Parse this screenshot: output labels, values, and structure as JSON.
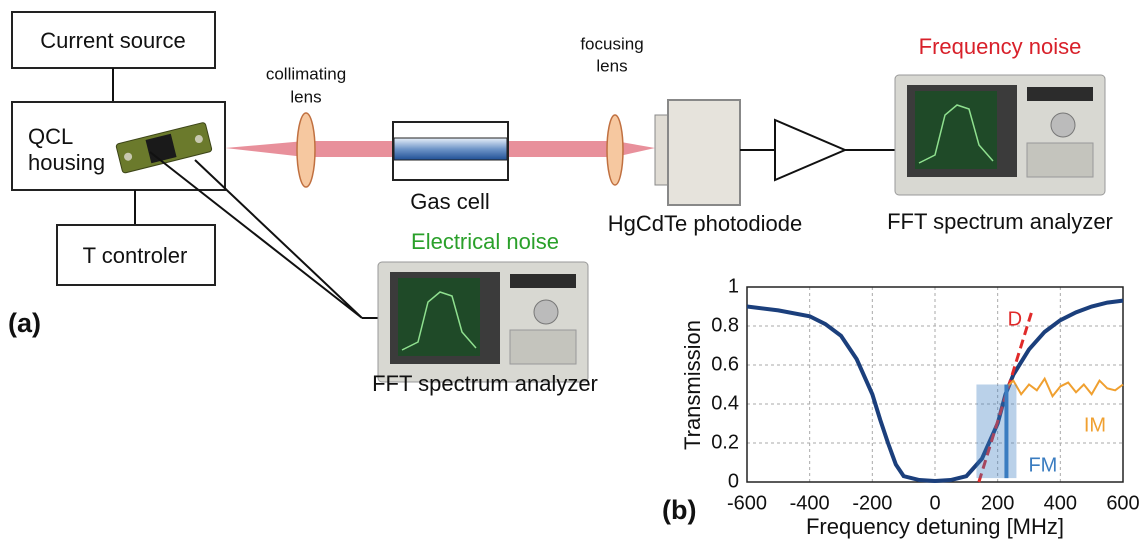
{
  "diagram": {
    "current_source": "Current source",
    "qcl_housing": [
      "QCL",
      "housing"
    ],
    "t_controller": "T controler",
    "collimating_lens": [
      "collimating",
      "lens"
    ],
    "gas_cell": "Gas cell",
    "focusing_lens": [
      "focusing",
      "lens"
    ],
    "photodiode": "HgCdTe photodiode",
    "frequency_noise": "Frequency noise",
    "analyzer_top": "FFT spectrum analyzer",
    "electrical_noise": "Electrical noise",
    "analyzer_bottom": "FFT spectrum analyzer",
    "panel_a": "(a)",
    "panel_b": "(b)"
  },
  "chart_data": {
    "type": "line",
    "xlabel": "Frequency detuning [MHz]",
    "ylabel": "Transmission",
    "xlim": [
      -600,
      600
    ],
    "xticks": [
      -600,
      -400,
      -200,
      0,
      200,
      400,
      600
    ],
    "ylim": [
      0,
      1
    ],
    "yticks": [
      0,
      0.2,
      0.4,
      0.6,
      0.8,
      1
    ],
    "grid": true,
    "series": [
      {
        "color": "#1b3f7c",
        "x": [
          -600,
          -500,
          -400,
          -350,
          -300,
          -250,
          -200,
          -175,
          -150,
          -125,
          -100,
          -50,
          0,
          50,
          100,
          150,
          200,
          225,
          250,
          300,
          350,
          400,
          450,
          500,
          550,
          600
        ],
        "values": [
          0.9,
          0.88,
          0.85,
          0.81,
          0.75,
          0.63,
          0.45,
          0.32,
          0.2,
          0.09,
          0.03,
          0.01,
          0.005,
          0.01,
          0.03,
          0.12,
          0.3,
          0.45,
          0.55,
          0.68,
          0.77,
          0.83,
          0.87,
          0.9,
          0.92,
          0.93
        ]
      },
      {
        "name": "D",
        "color": "#e02a2a",
        "dashed": true,
        "x": [
          140,
          310
        ],
        "values": [
          0,
          0.88
        ]
      },
      {
        "name": "IM",
        "color": "#f0a030",
        "x": [
          225,
          250,
          275,
          300,
          325,
          350,
          375,
          400,
          425,
          450,
          475,
          500,
          525,
          550,
          575,
          600
        ],
        "values": [
          0.48,
          0.52,
          0.45,
          0.5,
          0.47,
          0.53,
          0.44,
          0.49,
          0.51,
          0.46,
          0.5,
          0.45,
          0.52,
          0.48,
          0.47,
          0.5
        ]
      },
      {
        "name": "FM",
        "color": "#3a7cc0",
        "x": [
          228,
          228
        ],
        "values": [
          0.02,
          0.5
        ]
      }
    ]
  }
}
